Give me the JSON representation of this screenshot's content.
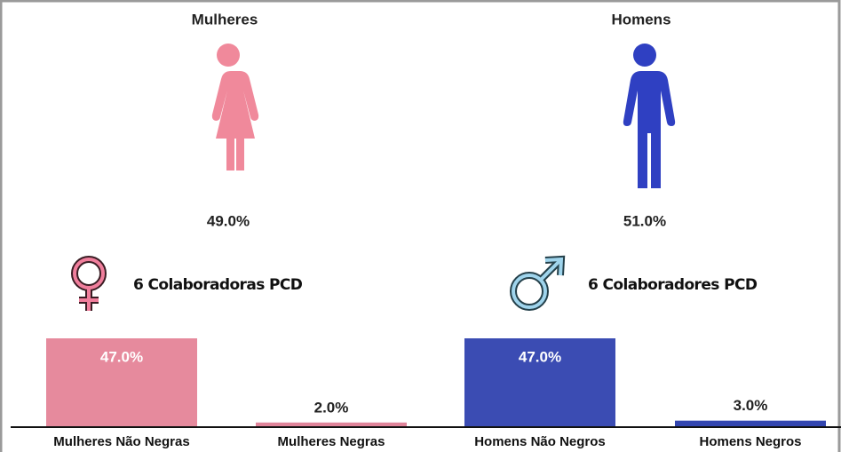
{
  "chart_data": [
    {
      "type": "pictograph",
      "categories": [
        "Mulheres",
        "Homens"
      ],
      "values": [
        49.0,
        51.0
      ],
      "value_labels": [
        "49.0%",
        "51.0%"
      ],
      "colors": [
        "#f0899b",
        "#2f40c2"
      ]
    },
    {
      "type": "bar",
      "categories": [
        "Mulheres Não Negras",
        "Mulheres Negras",
        "Homens Não Negros",
        "Homens Negros"
      ],
      "values": [
        47.0,
        2.0,
        47.0,
        3.0
      ],
      "value_labels": [
        "47.0%",
        "2.0%",
        "47.0%",
        "3.0%"
      ],
      "colors": [
        "#e68a9d",
        "#e0849a",
        "#3b4cb3",
        "#3346b0"
      ],
      "annotations": [
        "6 Colaboradoras PCD",
        "6 Colaboradores PCD"
      ]
    }
  ]
}
